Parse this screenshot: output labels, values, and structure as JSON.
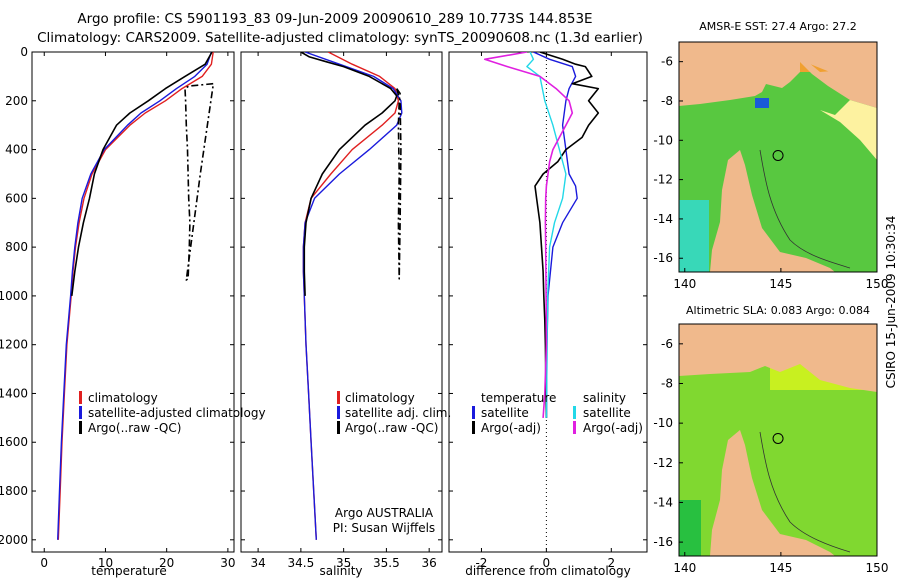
{
  "title_line1": "Argo profile: CS 5901193_83 09-Jun-2009 20090610_289 10.773S 144.853E",
  "title_line2": "Climatology: CARS2009. Satellite-adjusted climatology: synTS_20090608.nc (1.3d earlier)",
  "side_stamp": "CSIRO 15-Jun-2009 10:30:34",
  "colors": {
    "climatology": "#e02020",
    "satellite": "#1a1adc",
    "argo": "#000000",
    "sal_satellite": "#22d8e8",
    "sal_argo": "#e020e0",
    "land": "#f0b98c",
    "contour": "#333333"
  },
  "chart_data": [
    {
      "type": "line",
      "id": "temperature_profile",
      "xlabel": "temperature",
      "ylabel": "",
      "xlim": [
        -2,
        31
      ],
      "ylim": [
        2050,
        0
      ],
      "xticks": [
        0,
        10,
        20,
        30
      ],
      "yticks": [
        0,
        200,
        400,
        600,
        800,
        1000,
        1200,
        1400,
        1600,
        1800,
        2000
      ],
      "legend": [
        "climatology",
        "satellite-adjusted climatology",
        "Argo(..raw -QC)"
      ],
      "series": [
        {
          "name": "climatology",
          "depth": [
            0,
            50,
            100,
            150,
            200,
            250,
            300,
            400,
            500,
            600,
            700,
            800,
            900,
            1000,
            1200,
            1400,
            1600,
            1800,
            2000
          ],
          "values": [
            27.6,
            27.3,
            25.8,
            22.5,
            19.8,
            16.5,
            14.0,
            10.0,
            7.8,
            6.5,
            5.7,
            5.1,
            4.7,
            4.4,
            3.7,
            3.3,
            2.9,
            2.6,
            2.3
          ]
        },
        {
          "name": "satellite-adjusted climatology",
          "depth": [
            0,
            50,
            100,
            150,
            200,
            250,
            300,
            400,
            500,
            600,
            700,
            800,
            900,
            1000,
            1200,
            1400,
            1600,
            1800,
            2000
          ],
          "values": [
            27.3,
            26.6,
            24.6,
            21.6,
            18.9,
            15.8,
            13.6,
            9.8,
            7.6,
            6.2,
            5.5,
            5.0,
            4.6,
            4.3,
            3.6,
            3.2,
            2.8,
            2.5,
            2.2
          ]
        },
        {
          "name": "Argo(..raw -QC)",
          "depth": [
            0,
            50,
            100,
            150,
            200,
            250,
            300,
            400,
            500,
            600,
            700,
            800,
            900,
            1000
          ],
          "values": [
            27.4,
            26.3,
            23.0,
            19.8,
            17.0,
            14.0,
            11.8,
            9.6,
            8.2,
            7.4,
            6.4,
            5.6,
            5.0,
            4.5
          ]
        },
        {
          "name": "Argo(..raw -QC) raw",
          "depth": [
            130,
            140,
            150,
            200,
            300,
            400,
            500,
            600,
            700,
            800,
            930,
            935,
            500,
            135
          ],
          "values": [
            27.6,
            23.6,
            23.0,
            23.1,
            23.2,
            23.4,
            23.5,
            23.6,
            23.8,
            23.7,
            23.5,
            23.2,
            25.5,
            27.6
          ]
        }
      ]
    },
    {
      "type": "line",
      "id": "salinity_profile",
      "xlabel": "salinity",
      "xlim": [
        33.8,
        36.15
      ],
      "ylim": [
        2050,
        0
      ],
      "xticks": [
        34,
        34.5,
        35,
        35.5,
        36
      ],
      "legend": [
        "climatology",
        "satellite adj. clim.",
        "Argo(..raw -QC)"
      ],
      "annotation": [
        "Argo AUSTRALIA",
        "PI: Susan Wijffels"
      ],
      "series": [
        {
          "name": "climatology",
          "depth": [
            0,
            50,
            100,
            150,
            200,
            250,
            300,
            400,
            500,
            600,
            700,
            800,
            900,
            1000,
            1200,
            1400,
            1600,
            1800,
            2000
          ],
          "values": [
            34.82,
            35.1,
            35.42,
            35.6,
            35.64,
            35.6,
            35.45,
            35.1,
            34.85,
            34.62,
            34.55,
            34.53,
            34.53,
            34.54,
            34.56,
            34.59,
            34.62,
            34.65,
            34.68
          ]
        },
        {
          "name": "satellite adj. clim.",
          "depth": [
            0,
            50,
            100,
            150,
            200,
            250,
            300,
            400,
            500,
            600,
            700,
            800,
            900,
            1000,
            1200,
            1400,
            1600,
            1800,
            2000
          ],
          "values": [
            34.55,
            34.95,
            35.35,
            35.58,
            35.67,
            35.68,
            35.62,
            35.3,
            34.95,
            34.66,
            34.55,
            34.53,
            34.53,
            34.54,
            34.56,
            34.59,
            34.62,
            34.65,
            34.68
          ]
        },
        {
          "name": "Argo(..raw -QC)",
          "depth": [
            0,
            20,
            40,
            60,
            100,
            150,
            180,
            200,
            250,
            300,
            400,
            500,
            600,
            700,
            800,
            900,
            1000
          ],
          "values": [
            34.5,
            34.6,
            34.8,
            35.0,
            35.3,
            35.55,
            35.62,
            35.6,
            35.45,
            35.25,
            34.95,
            34.75,
            34.62,
            34.56,
            34.54,
            34.54,
            34.55
          ]
        },
        {
          "name": "Argo(..raw -QC) raw",
          "depth": [
            150,
            170,
            200,
            300,
            500,
            700,
            930,
            700,
            400,
            200,
            150
          ],
          "values": [
            35.62,
            35.66,
            35.65,
            35.64,
            35.65,
            35.64,
            35.65,
            35.66,
            35.67,
            35.66,
            35.62
          ]
        }
      ]
    },
    {
      "type": "line",
      "id": "difference_profile",
      "xlabel": "difference from climatology",
      "xlim": [
        -3,
        3.1
      ],
      "ylim": [
        2050,
        0
      ],
      "xticks": [
        -2,
        0,
        2
      ],
      "legend_headers": [
        "temperature",
        "salinity"
      ],
      "legend": [
        "satellite",
        "Argo(-adj)",
        "satellite",
        "Argo(-adj)"
      ],
      "series": [
        {
          "name": "temperature satellite",
          "depth": [
            0,
            30,
            60,
            100,
            150,
            200,
            300,
            400,
            500,
            550,
            600,
            700,
            800,
            1000,
            1200,
            1400,
            1500
          ],
          "values": [
            -0.4,
            0.1,
            0.8,
            0.9,
            0.7,
            0.6,
            0.5,
            0.6,
            0.7,
            0.9,
            0.95,
            0.5,
            0.2,
            0.05,
            0.02,
            0.01,
            0.0
          ]
        },
        {
          "name": "temperature Argo(-adj)",
          "depth": [
            0,
            30,
            50,
            60,
            80,
            100,
            130,
            150,
            200,
            250,
            300,
            350,
            400,
            450,
            500,
            550,
            600,
            700,
            800,
            900,
            1000,
            1100,
            1200,
            1300,
            1400,
            1500
          ],
          "values": [
            -0.2,
            0.5,
            0.9,
            1.2,
            1.3,
            1.4,
            0.8,
            1.6,
            1.3,
            1.6,
            1.3,
            1.1,
            0.6,
            0.35,
            -0.1,
            -0.35,
            -0.3,
            -0.2,
            -0.15,
            -0.1,
            -0.08,
            -0.05,
            -0.03,
            -0.02,
            -0.01,
            0.0
          ]
        },
        {
          "name": "salinity satellite",
          "depth": [
            0,
            30,
            60,
            100,
            200,
            300,
            400,
            500,
            600,
            700,
            800,
            1000,
            1200,
            1400,
            1500
          ],
          "values": [
            -0.5,
            -0.4,
            -0.6,
            -0.2,
            -0.05,
            0.2,
            0.4,
            0.6,
            0.5,
            0.25,
            0.1,
            0.04,
            0.02,
            0.01,
            0.0
          ]
        },
        {
          "name": "salinity Argo(-adj)",
          "depth": [
            0,
            30,
            60,
            100,
            150,
            200,
            250,
            300,
            350,
            400,
            450,
            500,
            550,
            600,
            700,
            800,
            1000,
            1200,
            1400,
            1500
          ],
          "values": [
            -0.6,
            -1.9,
            -1.2,
            -0.2,
            0.3,
            0.7,
            0.8,
            0.6,
            0.4,
            0.2,
            0.1,
            0.05,
            0.0,
            -0.02,
            -0.03,
            -0.02,
            -0.01,
            0.0,
            -0.05,
            -0.1
          ]
        }
      ]
    },
    {
      "type": "heatmap",
      "id": "sst_map",
      "title": "AMSR-E SST: 27.4 Argo: 27.2",
      "xlim": [
        139.7,
        150
      ],
      "ylim": [
        -16.7,
        -5.0
      ],
      "xticks": [
        140,
        145,
        150
      ],
      "yticks": [
        -6,
        -8,
        -10,
        -12,
        -14,
        -16
      ],
      "marker": {
        "lon": 144.853,
        "lat": -10.773
      }
    },
    {
      "type": "heatmap",
      "id": "sla_map",
      "title": "Altimetric SLA: 0.083 Argo: 0.084",
      "xlim": [
        139.7,
        150
      ],
      "ylim": [
        -16.7,
        -5.0
      ],
      "xticks": [
        140,
        145,
        150
      ],
      "yticks": [
        -6,
        -8,
        -10,
        -12,
        -14,
        -16
      ],
      "marker": {
        "lon": 144.853,
        "lat": -10.773
      }
    }
  ]
}
